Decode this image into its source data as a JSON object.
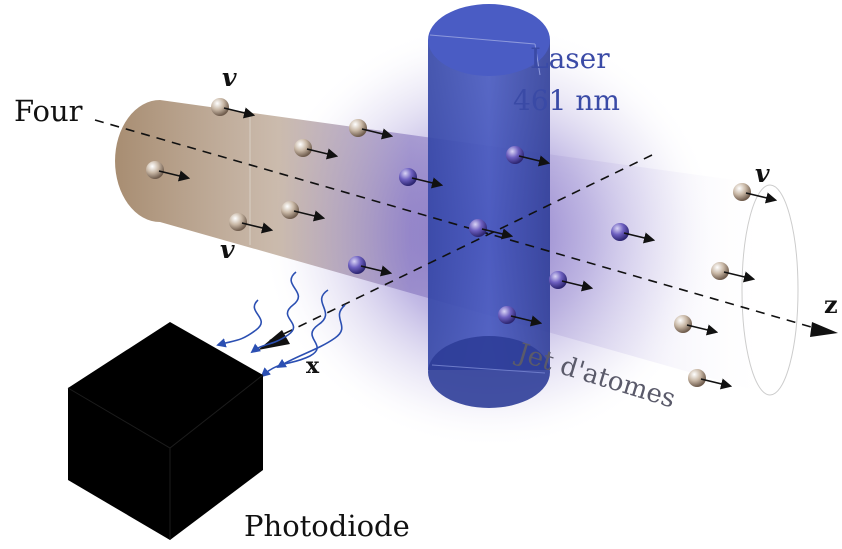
{
  "labels": {
    "oven": "Four",
    "laser_line1": "Laser",
    "laser_line2": "461 nm",
    "velocity": "v",
    "axis_x": "x",
    "axis_z": "z",
    "atom_beam": "Jet d'atomes",
    "detector": "Photodiode"
  },
  "colors": {
    "laser": "#3a4aa6",
    "fluorescence": "#6a55c0",
    "beam_start": "#a3876a",
    "emission": "#2b4fb2",
    "atom": "#c9b8a6",
    "detector": "#000000",
    "axis": "#111111"
  },
  "icons": {
    "atom": "sphere-icon",
    "velocity": "arrow-right-icon",
    "photon": "wavy-arrow-icon"
  }
}
